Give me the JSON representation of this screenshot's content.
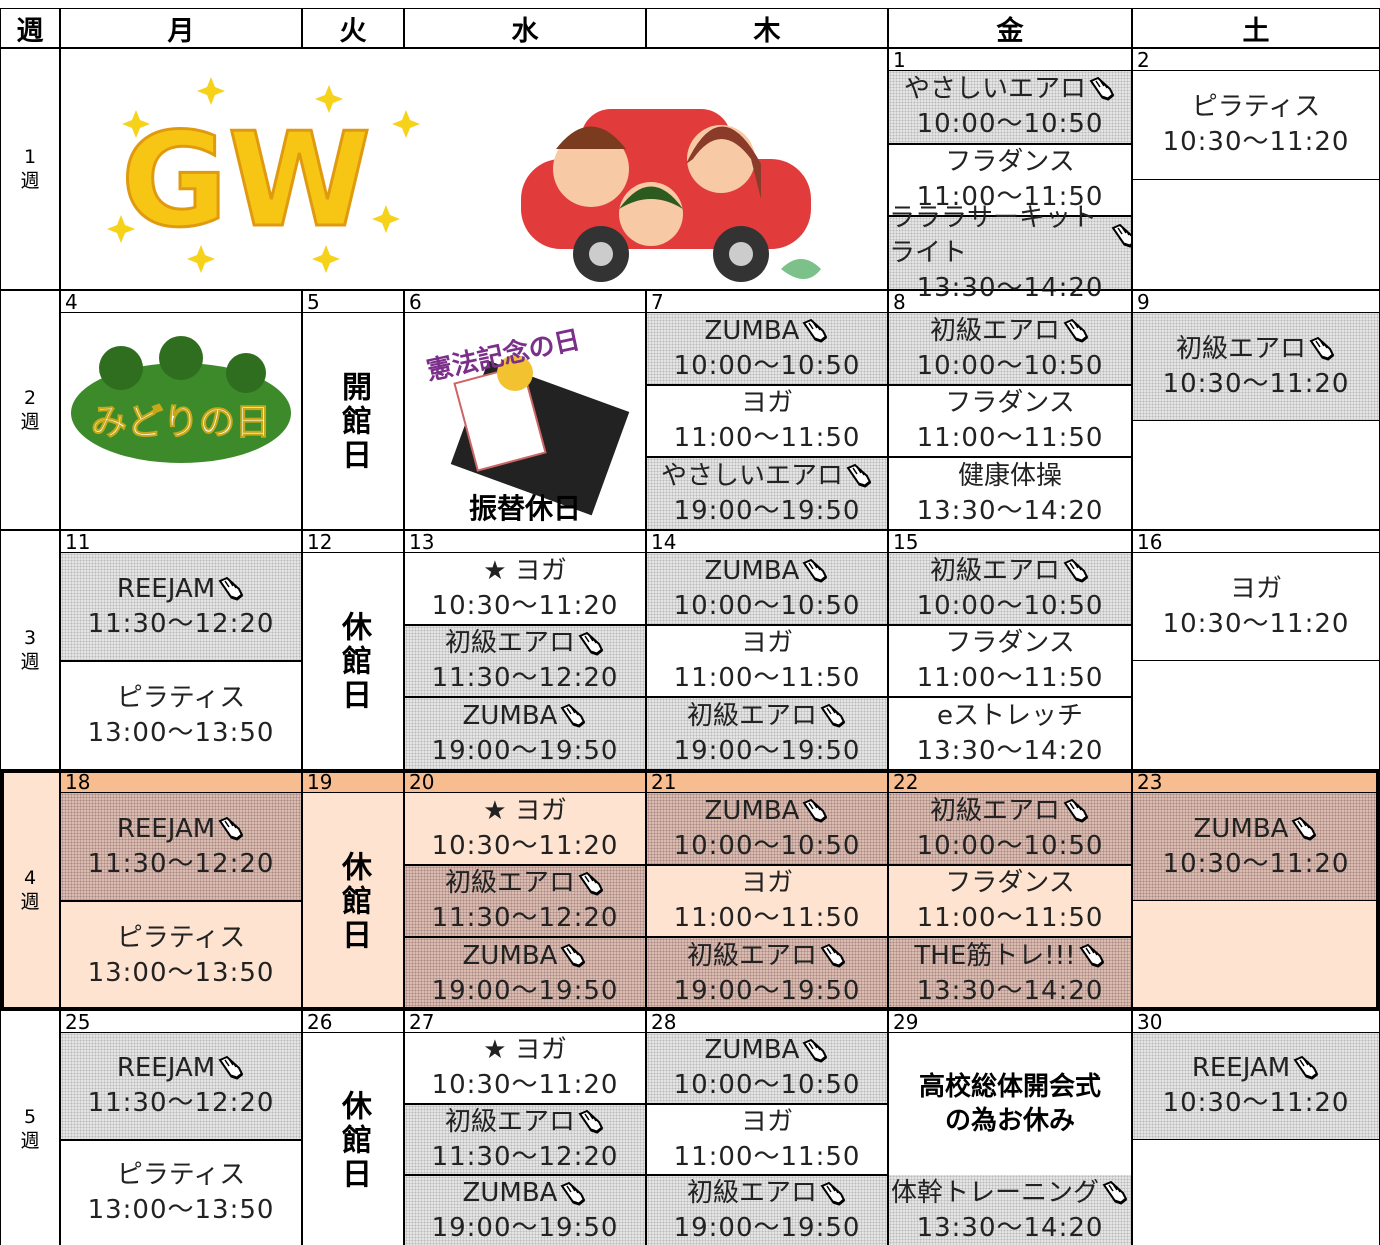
{
  "header": {
    "week": "週",
    "days": [
      "月",
      "火",
      "水",
      "木",
      "金",
      "土"
    ]
  },
  "weeks": [
    {
      "number": "1",
      "unit": "週",
      "banner": {
        "text": "GW"
      },
      "days": [
        null,
        null,
        null,
        null,
        {
          "date": "1",
          "sessions": [
            {
              "name": "やさしいエアロ",
              "time": "10:00～10:50",
              "shaded": true
            },
            {
              "name": "フラダンス",
              "time": "11:00～11:50",
              "shaded": false
            },
            {
              "name": "ラララサーキットライト",
              "time": "13:30～14:20",
              "shaded": true
            }
          ]
        },
        {
          "date": "2",
          "sessions": [
            {
              "name": "ピラティス",
              "time": "10:30～11:20",
              "shaded": false
            }
          ]
        }
      ]
    },
    {
      "number": "2",
      "unit": "週",
      "days": [
        {
          "date": "4",
          "image_text": "みどりの日"
        },
        {
          "date": "5",
          "closed": "開館日"
        },
        {
          "date": "6",
          "image_text": "憲法記念の日",
          "note": "振替休日"
        },
        {
          "date": "7",
          "sessions": [
            {
              "name": "ZUMBA",
              "time": "10:00～10:50",
              "shaded": true
            },
            {
              "name": "ヨガ",
              "time": "11:00～11:50",
              "shaded": false
            },
            {
              "name": "やさしいエアロ",
              "time": "19:00～19:50",
              "shaded": true
            }
          ]
        },
        {
          "date": "8",
          "sessions": [
            {
              "name": "初級エアロ",
              "time": "10:00～10:50",
              "shaded": true
            },
            {
              "name": "フラダンス",
              "time": "11:00～11:50",
              "shaded": false
            },
            {
              "name": "健康体操",
              "time": "13:30～14:20",
              "shaded": false
            }
          ]
        },
        {
          "date": "9",
          "sessions": [
            {
              "name": "初級エアロ",
              "time": "10:30～11:20",
              "shaded": true
            }
          ]
        }
      ]
    },
    {
      "number": "3",
      "unit": "週",
      "days": [
        {
          "date": "11",
          "sessions": [
            {
              "name": "REEJAM",
              "time": "11:30～12:20",
              "shaded": true
            },
            {
              "name": "ピラティス",
              "time": "13:00～13:50",
              "shaded": false
            }
          ]
        },
        {
          "date": "12",
          "closed": "休館日"
        },
        {
          "date": "13",
          "sessions": [
            {
              "name": "★ ヨガ",
              "time": "10:30～11:20",
              "shaded": false
            },
            {
              "name": "初級エアロ",
              "time": "11:30～12:20",
              "shaded": true
            },
            {
              "name": "ZUMBA",
              "time": "19:00～19:50",
              "shaded": true
            }
          ]
        },
        {
          "date": "14",
          "sessions": [
            {
              "name": "ZUMBA",
              "time": "10:00～10:50",
              "shaded": true
            },
            {
              "name": "ヨガ",
              "time": "11:00～11:50",
              "shaded": false
            },
            {
              "name": "初級エアロ",
              "time": "19:00～19:50",
              "shaded": true
            }
          ]
        },
        {
          "date": "15",
          "sessions": [
            {
              "name": "初級エアロ",
              "time": "10:00～10:50",
              "shaded": true
            },
            {
              "name": "フラダンス",
              "time": "11:00～11:50",
              "shaded": false
            },
            {
              "name": "eストレッチ",
              "time": "13:30～14:20",
              "shaded": false
            }
          ]
        },
        {
          "date": "16",
          "sessions": [
            {
              "name": "ヨガ",
              "time": "10:30～11:20",
              "shaded": false
            }
          ]
        }
      ]
    },
    {
      "number": "4",
      "unit": "週",
      "highlight": true,
      "days": [
        {
          "date": "18",
          "sessions": [
            {
              "name": "REEJAM",
              "time": "11:30～12:20",
              "shaded": true
            },
            {
              "name": "ピラティス",
              "time": "13:00～13:50",
              "shaded": false
            }
          ]
        },
        {
          "date": "19",
          "closed": "休館日"
        },
        {
          "date": "20",
          "sessions": [
            {
              "name": "★ ヨガ",
              "time": "10:30～11:20",
              "shaded": false
            },
            {
              "name": "初級エアロ",
              "time": "11:30～12:20",
              "shaded": true
            },
            {
              "name": "ZUMBA",
              "time": "19:00～19:50",
              "shaded": true
            }
          ]
        },
        {
          "date": "21",
          "sessions": [
            {
              "name": "ZUMBA",
              "time": "10:00～10:50",
              "shaded": true
            },
            {
              "name": "ヨガ",
              "time": "11:00～11:50",
              "shaded": false
            },
            {
              "name": "初級エアロ",
              "time": "19:00～19:50",
              "shaded": true
            }
          ]
        },
        {
          "date": "22",
          "sessions": [
            {
              "name": "初級エアロ",
              "time": "10:00～10:50",
              "shaded": true
            },
            {
              "name": "フラダンス",
              "time": "11:00～11:50",
              "shaded": false
            },
            {
              "name": "THE筋トレ!!!",
              "time": "13:30～14:20",
              "shaded": true
            }
          ]
        },
        {
          "date": "23",
          "sessions": [
            {
              "name": "ZUMBA",
              "time": "10:30～11:20",
              "shaded": true
            }
          ]
        }
      ]
    },
    {
      "number": "5",
      "unit": "週",
      "days": [
        {
          "date": "25",
          "sessions": [
            {
              "name": "REEJAM",
              "time": "11:30～12:20",
              "shaded": true
            },
            {
              "name": "ピラティス",
              "time": "13:00～13:50",
              "shaded": false
            }
          ]
        },
        {
          "date": "26",
          "closed": "休館日"
        },
        {
          "date": "27",
          "sessions": [
            {
              "name": "★ ヨガ",
              "time": "10:30～11:20",
              "shaded": false
            },
            {
              "name": "初級エアロ",
              "time": "11:30～12:20",
              "shaded": true
            },
            {
              "name": "ZUMBA",
              "time": "19:00～19:50",
              "shaded": true
            }
          ]
        },
        {
          "date": "28",
          "sessions": [
            {
              "name": "ZUMBA",
              "time": "10:00～10:50",
              "shaded": true
            },
            {
              "name": "ヨガ",
              "time": "11:00～11:50",
              "shaded": false
            },
            {
              "name": "初級エアロ",
              "time": "19:00～19:50",
              "shaded": true
            }
          ]
        },
        {
          "date": "29",
          "notice": [
            "高校総体開会式",
            "の為お休み"
          ],
          "sessions": [
            {
              "name": "体幹トレーニング",
              "time": "13:30～14:20",
              "shaded": true
            }
          ]
        },
        {
          "date": "30",
          "sessions": [
            {
              "name": "REEJAM",
              "time": "10:30～11:20",
              "shaded": true
            }
          ]
        }
      ]
    }
  ]
}
